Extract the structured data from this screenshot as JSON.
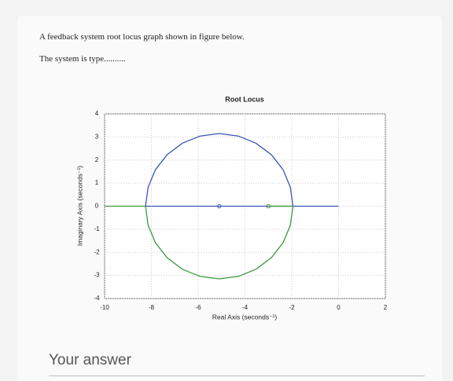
{
  "question": {
    "line1": "A feedback system root locus graph shown in figure below.",
    "line2": "The system is type.........."
  },
  "answer_placeholder": "Your answer",
  "chart_data": {
    "type": "line",
    "title": "Root Locus",
    "x_label": "Real Axis (seconds⁻¹)",
    "y_label": "Imaginary Axis (seconds⁻¹)",
    "xlim": [
      -10,
      2
    ],
    "ylim": [
      -4,
      4
    ],
    "xticks": [
      -10,
      -8,
      -6,
      -4,
      -2,
      0,
      2
    ],
    "yticks": [
      -4,
      -3,
      -2,
      -1,
      0,
      1,
      2,
      3,
      4
    ],
    "grid": true,
    "series": [
      {
        "color": "#3a55b4",
        "x": [
          -8.25,
          -8.14,
          -7.83,
          -7.33,
          -6.68,
          -5.92,
          -5.1,
          -4.28,
          -3.53,
          -2.87,
          -2.37,
          -2.06,
          -1.95
        ],
        "values": [
          0,
          0.82,
          1.58,
          2.23,
          2.73,
          3.04,
          3.15,
          3.04,
          2.73,
          2.23,
          1.58,
          0.82,
          0
        ]
      },
      {
        "color": "#3a55b4",
        "x": [
          -8.25,
          0
        ],
        "values": [
          0,
          0
        ]
      },
      {
        "color": "#3a9a3a",
        "x": [
          -8.25,
          -8.14,
          -7.83,
          -7.33,
          -6.68,
          -5.92,
          -5.1,
          -4.28,
          -3.53,
          -2.87,
          -2.37,
          -2.06,
          -1.95
        ],
        "values": [
          0,
          -0.82,
          -1.58,
          -2.23,
          -2.73,
          -3.04,
          -3.15,
          -3.04,
          -2.73,
          -2.23,
          -1.58,
          -0.82,
          0
        ]
      },
      {
        "color": "#3a9a3a",
        "x": [
          -10,
          -8.25
        ],
        "values": [
          0,
          0
        ]
      },
      {
        "color": "#3a9a3a",
        "x": [
          -3,
          -1.95
        ],
        "values": [
          0,
          0
        ]
      }
    ],
    "markers": [
      {
        "x": -5.1,
        "y": 0,
        "color": "#3a55b4"
      },
      {
        "x": -3,
        "y": 0,
        "color": "#3a9a3a"
      }
    ]
  }
}
